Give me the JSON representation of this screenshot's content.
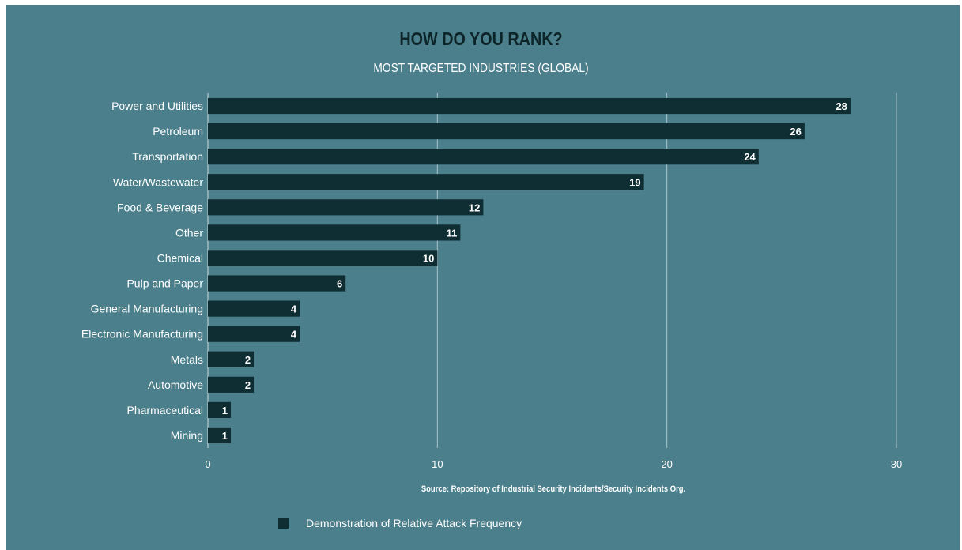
{
  "header": {
    "title": "HOW  DO YOU RANK?",
    "subtitle": "MOST TARGETED INDUSTRIES (GLOBAL)"
  },
  "source": "Source: Repository of Industrial Security Incidents/Security Incidents Org.",
  "legend": {
    "label": "Demonstration of Relative Attack Frequency"
  },
  "colors": {
    "background": "#4a7f8b",
    "bar": "#0f2e33",
    "title": "#0d2428",
    "text": "#ffffff"
  },
  "chart_data": {
    "type": "bar",
    "orientation": "horizontal",
    "categories": [
      "Power and Utilities",
      "Petroleum",
      "Transportation",
      "Water/Wastewater",
      "Food & Beverage",
      "Other",
      "Chemical",
      "Pulp and Paper",
      "General Manufacturing",
      "Electronic Manufacturing",
      "Metals",
      "Automotive",
      "Pharmaceutical",
      "Mining"
    ],
    "series": [
      {
        "name": "Demonstration of Relative Attack Frequency",
        "values": [
          28,
          26,
          24,
          19,
          12,
          11,
          10,
          6,
          4,
          4,
          2,
          2,
          1,
          1
        ]
      }
    ],
    "xlim": [
      0,
      30
    ],
    "xticks": [
      0,
      10,
      20,
      30
    ],
    "grid": true,
    "data_labels": true,
    "legend_position": "bottom-left"
  }
}
